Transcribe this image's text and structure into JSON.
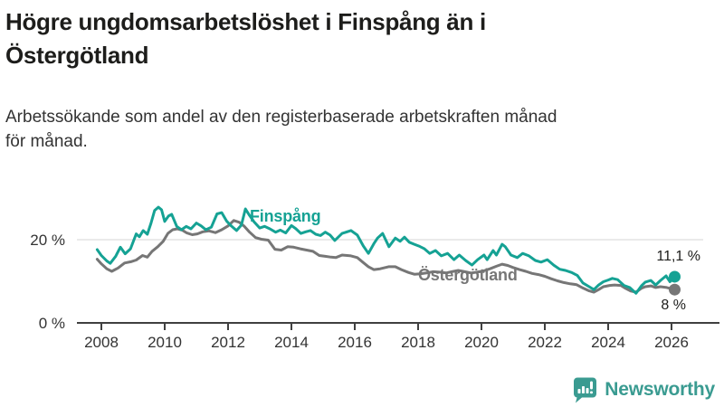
{
  "header": {
    "title_lines": [
      "Högre ungdomsarbetslöshet i Finspång än i",
      "Östergötland"
    ],
    "subtitle_lines": [
      "Arbetssökande som andel av den registerbaserade arbetskraften månad",
      "för månad."
    ]
  },
  "annotations": {
    "finspang_label": "Finspång",
    "ostergotland_label": "Östergötland"
  },
  "footer": {
    "brand": "Newsworthy",
    "brand_color": "#3a9b91"
  },
  "colors": {
    "finspang_line": "#15a294",
    "ostergotland_line": "#767676",
    "gridline": "#dddddd",
    "axis": "#404040",
    "tick_label": "#333333",
    "value_label": "#1d1d1b"
  },
  "chart_data": {
    "type": "line",
    "title": "Högre ungdomsarbetslöshet i Finspång än i Östergötland",
    "subtitle": "Arbetssökande som andel av den registerbaserade arbetskraften månad för månad.",
    "x_axis": {
      "ticks": [
        2008,
        2010,
        2012,
        2014,
        2016,
        2018,
        2020,
        2022,
        2024,
        2026
      ],
      "tick_labels": [
        "2008",
        "2010",
        "2012",
        "2014",
        "2016",
        "2018",
        "2020",
        "2022",
        "2024",
        "2026"
      ],
      "range": [
        2007.7,
        2027.5
      ]
    },
    "y_axis": {
      "ticks": [
        {
          "value": 20,
          "label": "20 %"
        },
        {
          "value": 0,
          "label": "0 %"
        }
      ],
      "range": [
        0,
        30
      ],
      "unit": "%"
    },
    "legend_position": "inline-labels",
    "grid": "horizontal-only",
    "series": [
      {
        "name": "Östergötland",
        "color": "#767676",
        "end_label": "8 %",
        "end_value": 8.0,
        "points": [
          [
            2007.87,
            15.3
          ],
          [
            2008.0,
            14.2
          ],
          [
            2008.17,
            13.0
          ],
          [
            2008.33,
            12.4
          ],
          [
            2008.53,
            13.2
          ],
          [
            2008.73,
            14.4
          ],
          [
            2008.93,
            14.7
          ],
          [
            2009.1,
            15.1
          ],
          [
            2009.3,
            16.2
          ],
          [
            2009.45,
            15.8
          ],
          [
            2009.6,
            17.2
          ],
          [
            2009.78,
            18.3
          ],
          [
            2009.95,
            19.6
          ],
          [
            2010.1,
            21.5
          ],
          [
            2010.25,
            22.4
          ],
          [
            2010.4,
            22.6
          ],
          [
            2010.55,
            22.3
          ],
          [
            2010.7,
            21.6
          ],
          [
            2010.87,
            21.2
          ],
          [
            2011.03,
            21.4
          ],
          [
            2011.2,
            21.9
          ],
          [
            2011.4,
            22.1
          ],
          [
            2011.6,
            21.7
          ],
          [
            2011.8,
            22.4
          ],
          [
            2012.0,
            23.3
          ],
          [
            2012.18,
            24.6
          ],
          [
            2012.35,
            24.2
          ],
          [
            2012.5,
            23.3
          ],
          [
            2012.68,
            21.8
          ],
          [
            2012.87,
            20.5
          ],
          [
            2013.05,
            20.1
          ],
          [
            2013.27,
            19.9
          ],
          [
            2013.48,
            17.7
          ],
          [
            2013.68,
            17.5
          ],
          [
            2013.88,
            18.3
          ],
          [
            2014.07,
            18.2
          ],
          [
            2014.28,
            17.8
          ],
          [
            2014.48,
            17.5
          ],
          [
            2014.68,
            17.2
          ],
          [
            2014.88,
            16.2
          ],
          [
            2015.07,
            16.0
          ],
          [
            2015.25,
            15.8
          ],
          [
            2015.4,
            15.7
          ],
          [
            2015.6,
            16.3
          ],
          [
            2015.88,
            16.1
          ],
          [
            2016.08,
            15.7
          ],
          [
            2016.27,
            14.5
          ],
          [
            2016.43,
            13.5
          ],
          [
            2016.6,
            12.8
          ],
          [
            2016.8,
            13.0
          ],
          [
            2017.07,
            13.5
          ],
          [
            2017.28,
            13.5
          ],
          [
            2017.47,
            12.8
          ],
          [
            2017.7,
            12.1
          ],
          [
            2017.88,
            11.7
          ],
          [
            2018.07,
            11.8
          ],
          [
            2018.27,
            12.0
          ],
          [
            2018.48,
            12.3
          ],
          [
            2018.68,
            12.2
          ],
          [
            2018.88,
            12.0
          ],
          [
            2019.07,
            12.3
          ],
          [
            2019.27,
            12.6
          ],
          [
            2019.47,
            12.3
          ],
          [
            2019.67,
            12.0
          ],
          [
            2019.87,
            12.2
          ],
          [
            2020.07,
            12.5
          ],
          [
            2020.27,
            13.0
          ],
          [
            2020.47,
            13.6
          ],
          [
            2020.65,
            14.1
          ],
          [
            2020.83,
            13.8
          ],
          [
            2021.0,
            13.3
          ],
          [
            2021.2,
            12.8
          ],
          [
            2021.4,
            12.4
          ],
          [
            2021.6,
            11.9
          ],
          [
            2021.8,
            11.6
          ],
          [
            2022.0,
            11.2
          ],
          [
            2022.2,
            10.6
          ],
          [
            2022.4,
            10.1
          ],
          [
            2022.6,
            9.7
          ],
          [
            2022.8,
            9.4
          ],
          [
            2023.0,
            9.2
          ],
          [
            2023.2,
            8.4
          ],
          [
            2023.4,
            7.7
          ],
          [
            2023.55,
            7.4
          ],
          [
            2023.7,
            8.0
          ],
          [
            2023.85,
            8.7
          ],
          [
            2024.05,
            9.0
          ],
          [
            2024.2,
            9.1
          ],
          [
            2024.4,
            9.0
          ],
          [
            2024.55,
            8.3
          ],
          [
            2024.7,
            7.7
          ],
          [
            2024.88,
            7.4
          ],
          [
            2025.05,
            8.3
          ],
          [
            2025.17,
            8.7
          ],
          [
            2025.35,
            8.9
          ],
          [
            2025.5,
            8.5
          ],
          [
            2025.65,
            8.7
          ],
          [
            2025.85,
            8.5
          ],
          [
            2026.1,
            8.0
          ]
        ]
      },
      {
        "name": "Finspång",
        "color": "#15a294",
        "end_label": "11,1 %",
        "end_value": 11.1,
        "points": [
          [
            2007.87,
            17.6
          ],
          [
            2008.0,
            16.2
          ],
          [
            2008.17,
            14.9
          ],
          [
            2008.28,
            14.3
          ],
          [
            2008.45,
            16.0
          ],
          [
            2008.6,
            18.2
          ],
          [
            2008.75,
            16.6
          ],
          [
            2008.92,
            17.8
          ],
          [
            2009.1,
            21.4
          ],
          [
            2009.2,
            20.7
          ],
          [
            2009.32,
            22.2
          ],
          [
            2009.45,
            21.3
          ],
          [
            2009.57,
            24.0
          ],
          [
            2009.68,
            27.0
          ],
          [
            2009.8,
            27.8
          ],
          [
            2009.9,
            27.2
          ],
          [
            2010.0,
            24.4
          ],
          [
            2010.12,
            25.7
          ],
          [
            2010.22,
            26.1
          ],
          [
            2010.38,
            23.2
          ],
          [
            2010.53,
            22.4
          ],
          [
            2010.68,
            23.2
          ],
          [
            2010.83,
            22.6
          ],
          [
            2011.0,
            24.0
          ],
          [
            2011.15,
            23.3
          ],
          [
            2011.3,
            22.4
          ],
          [
            2011.47,
            23.0
          ],
          [
            2011.65,
            26.2
          ],
          [
            2011.8,
            26.5
          ],
          [
            2011.95,
            24.5
          ],
          [
            2012.1,
            23.3
          ],
          [
            2012.27,
            22.2
          ],
          [
            2012.42,
            23.5
          ],
          [
            2012.55,
            27.4
          ],
          [
            2012.68,
            25.8
          ],
          [
            2012.82,
            24.3
          ],
          [
            2013.0,
            22.8
          ],
          [
            2013.15,
            23.2
          ],
          [
            2013.32,
            22.6
          ],
          [
            2013.5,
            21.8
          ],
          [
            2013.65,
            22.3
          ],
          [
            2013.82,
            21.6
          ],
          [
            2014.0,
            23.4
          ],
          [
            2014.13,
            22.7
          ],
          [
            2014.3,
            21.5
          ],
          [
            2014.45,
            21.9
          ],
          [
            2014.6,
            22.2
          ],
          [
            2014.77,
            21.3
          ],
          [
            2014.92,
            21.0
          ],
          [
            2015.07,
            21.8
          ],
          [
            2015.22,
            21.1
          ],
          [
            2015.37,
            19.8
          ],
          [
            2015.6,
            21.5
          ],
          [
            2015.88,
            22.2
          ],
          [
            2016.08,
            21.1
          ],
          [
            2016.27,
            18.5
          ],
          [
            2016.43,
            16.7
          ],
          [
            2016.6,
            19.0
          ],
          [
            2016.72,
            20.4
          ],
          [
            2016.88,
            21.5
          ],
          [
            2017.08,
            18.3
          ],
          [
            2017.28,
            20.4
          ],
          [
            2017.43,
            19.6
          ],
          [
            2017.57,
            20.6
          ],
          [
            2017.72,
            19.4
          ],
          [
            2017.88,
            18.9
          ],
          [
            2018.05,
            18.4
          ],
          [
            2018.2,
            17.8
          ],
          [
            2018.37,
            16.7
          ],
          [
            2018.55,
            17.4
          ],
          [
            2018.73,
            16.1
          ],
          [
            2018.93,
            16.7
          ],
          [
            2019.13,
            15.2
          ],
          [
            2019.3,
            16.3
          ],
          [
            2019.5,
            15.0
          ],
          [
            2019.7,
            13.9
          ],
          [
            2019.88,
            15.2
          ],
          [
            2020.08,
            16.3
          ],
          [
            2020.18,
            15.2
          ],
          [
            2020.37,
            17.4
          ],
          [
            2020.47,
            16.3
          ],
          [
            2020.65,
            18.9
          ],
          [
            2020.75,
            18.3
          ],
          [
            2020.93,
            16.3
          ],
          [
            2021.13,
            15.7
          ],
          [
            2021.3,
            16.7
          ],
          [
            2021.5,
            16.1
          ],
          [
            2021.7,
            15.0
          ],
          [
            2021.88,
            14.6
          ],
          [
            2022.08,
            15.2
          ],
          [
            2022.28,
            13.9
          ],
          [
            2022.47,
            12.9
          ],
          [
            2022.65,
            12.6
          ],
          [
            2022.85,
            12.1
          ],
          [
            2023.03,
            11.4
          ],
          [
            2023.2,
            9.6
          ],
          [
            2023.4,
            8.7
          ],
          [
            2023.55,
            8.0
          ],
          [
            2023.7,
            9.1
          ],
          [
            2023.85,
            9.9
          ],
          [
            2024.0,
            10.3
          ],
          [
            2024.13,
            10.7
          ],
          [
            2024.3,
            10.4
          ],
          [
            2024.5,
            9.0
          ],
          [
            2024.68,
            8.5
          ],
          [
            2024.88,
            7.1
          ],
          [
            2025.05,
            8.9
          ],
          [
            2025.17,
            9.8
          ],
          [
            2025.35,
            10.2
          ],
          [
            2025.5,
            9.1
          ],
          [
            2025.65,
            10.2
          ],
          [
            2025.83,
            11.3
          ],
          [
            2025.95,
            9.9
          ],
          [
            2026.1,
            11.1
          ]
        ]
      }
    ]
  }
}
